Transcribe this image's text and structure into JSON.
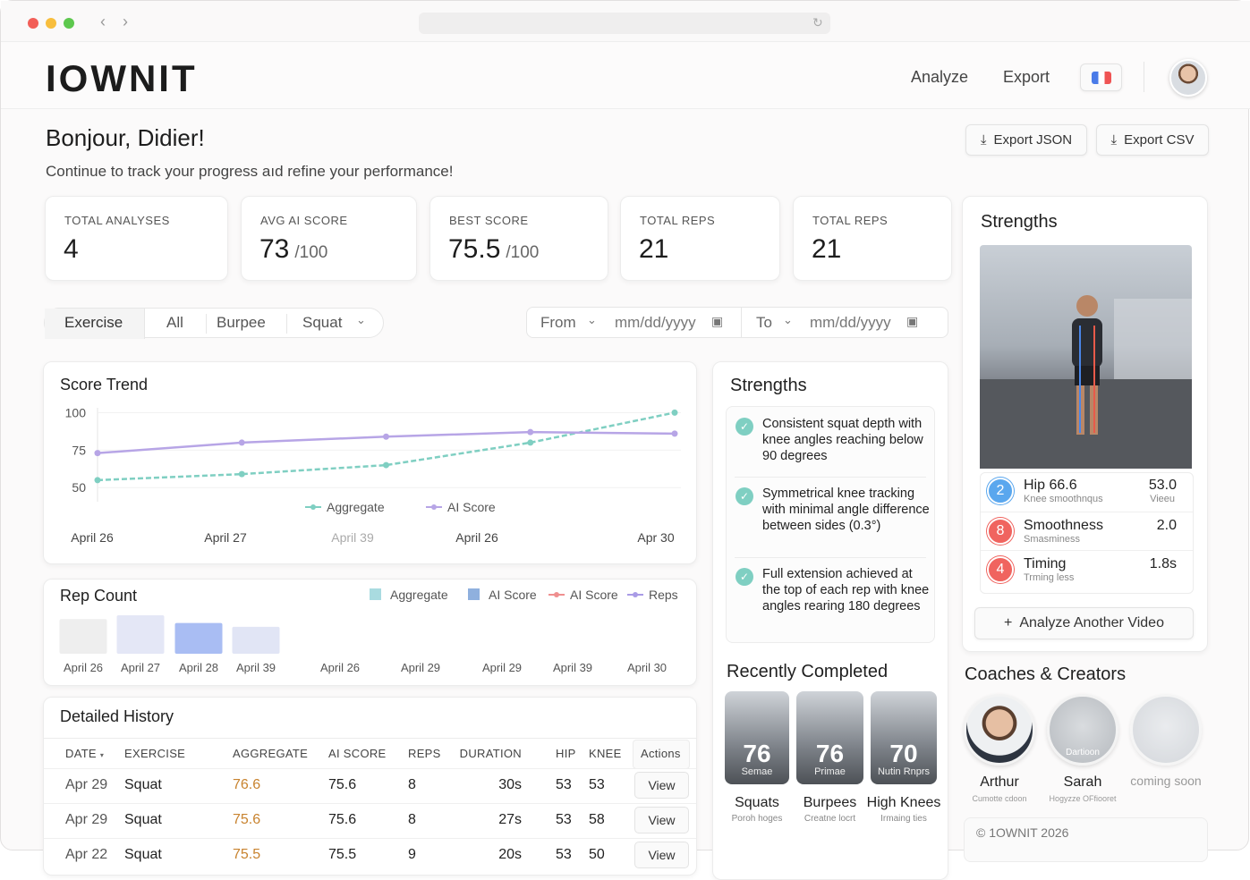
{
  "header": {
    "logo": "IOWNIT",
    "nav": [
      "Analyze",
      "Export"
    ]
  },
  "greeting": {
    "title": "Bonjour, Didier!",
    "subtitle": "Continue to track your progress aıd refine your performance!"
  },
  "exports": [
    "Export JSON",
    "Export CSV"
  ],
  "stats": [
    {
      "label": "TOTAL ANALYSES",
      "value": 4
    },
    {
      "label": "AVG AI SCORE",
      "value": 73,
      "unit": "/100"
    },
    {
      "label": "BEST SCORE",
      "value": 75.5,
      "unit": "/100"
    },
    {
      "label": "TOTAL REPS",
      "value": 21
    },
    {
      "label": "TOTAL REPS",
      "value": 21
    }
  ],
  "filters": {
    "exercise": [
      "Exercise",
      "All",
      "Burpee",
      "Squat"
    ],
    "from": "From",
    "to": "To",
    "placeholder": "mm/dd/yyyy"
  },
  "score_trend": {
    "type": "line",
    "title": "Score Trend",
    "categories": [
      "April 26",
      "April 27",
      "April 39",
      "April 26",
      "Apr 30"
    ],
    "series": [
      {
        "name": "Aggregate",
        "color": "#7fcfc2",
        "dashed": true,
        "values": [
          55,
          59,
          65,
          80,
          100
        ]
      },
      {
        "name": "AI Score",
        "color": "#b7a5e6",
        "values": [
          73,
          80,
          84,
          87,
          86
        ]
      }
    ],
    "ylim": [
      40,
      105
    ],
    "yticks": [
      50,
      75,
      100
    ],
    "grid": true
  },
  "rep_count": {
    "type": "bar",
    "title": "Rep Count",
    "legend": [
      {
        "name": "Aggregate",
        "color": "#a9dbe0",
        "kind": "square"
      },
      {
        "name": "AI Score",
        "color": "#8fb0de",
        "kind": "square"
      },
      {
        "name": "AI Score",
        "color": "#ef8f8f",
        "kind": "line"
      },
      {
        "name": "Reps",
        "color": "#a99be6",
        "kind": "line"
      }
    ],
    "categories": [
      "April 26",
      "April 27",
      "April 28",
      "April 39",
      "April 26",
      "April 29",
      "April 29",
      "April 39",
      "April 30"
    ],
    "values": [
      9,
      10,
      8,
      7,
      null,
      null,
      null,
      null,
      null
    ],
    "colors": [
      "#eeeeee",
      "#e4e7f6",
      "#a9bdf3",
      "#e1e5f5"
    ],
    "ylim": [
      0,
      10
    ]
  },
  "history": {
    "title": "Detailed History",
    "columns": [
      "DATE",
      "EXERCISE",
      "AGGREGATE",
      "AI SCORE",
      "REPS",
      "DURATION",
      "HIP",
      "KNEE",
      "Actions"
    ],
    "rows": [
      [
        "Apr 29",
        "Squat",
        76.6,
        75.6,
        8,
        "30s",
        53,
        53,
        "View"
      ],
      [
        "Apr 29",
        "Squat",
        75.6,
        75.6,
        8,
        "27s",
        53,
        58,
        "View"
      ],
      [
        "Apr 22",
        "Squat",
        75.5,
        75.5,
        9,
        "20s",
        53,
        50,
        "View"
      ]
    ]
  },
  "strengths_mid": {
    "title": "Strengths",
    "items": [
      "Consistent squat depth with knee angles reaching below 90 degrees",
      "Symmetrical knee tracking with minimal angle difference between sides (0.3°)",
      "Full extension achieved at the top of each rep with knee angles rearing 180 degrees"
    ]
  },
  "recent": {
    "title": "Recently Completed",
    "items": [
      {
        "score": 76,
        "caption": "Semae",
        "name": "Squats",
        "sub": "Poroh hoges"
      },
      {
        "score": 76,
        "caption": "Primae",
        "name": "Burpees",
        "sub": "Creatne locrt"
      },
      {
        "score": 70,
        "caption": "Nutin Rnprs",
        "name": "High Knees",
        "sub": "Irmaing ties"
      }
    ]
  },
  "strengths_side": {
    "title": "Strengths",
    "metrics": [
      {
        "rank": 2,
        "color": "#5aa7ee",
        "name": "Hip 66.6",
        "sub": "Knee smoothnqus",
        "value": "53.0",
        "note": "Vieeu"
      },
      {
        "rank": 8,
        "color": "#f0645f",
        "name": "Smoothness",
        "sub": "Smasminess",
        "value": "2.0"
      },
      {
        "rank": 4,
        "color": "#f0645f",
        "name": "Timing",
        "sub": "Trming less",
        "value": "1.8s"
      }
    ],
    "button": "Analyze Another Video"
  },
  "coaches": {
    "title": "Coaches & Creators",
    "items": [
      {
        "name": "Arthur",
        "sub": "Cumotte cdoon"
      },
      {
        "name": "Sarah",
        "sub": "Hogyzze OFfiooret",
        "badge": "Dartioon"
      },
      {
        "name": "coming soon"
      }
    ]
  },
  "footer": "© 1OWNIT 2026"
}
